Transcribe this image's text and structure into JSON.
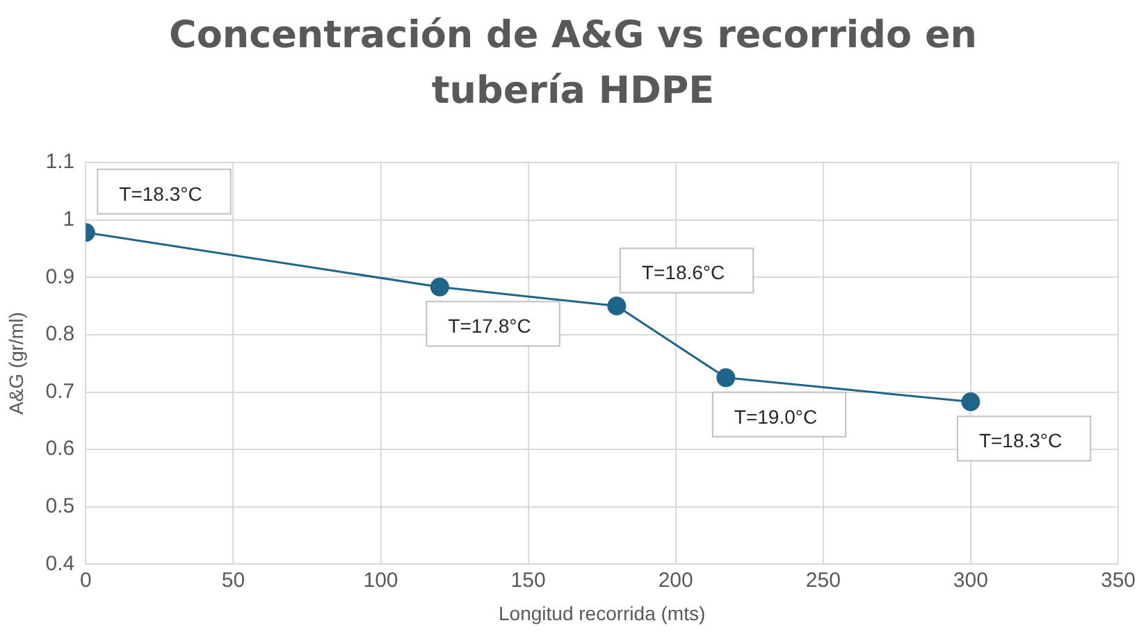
{
  "chart_data": {
    "type": "line",
    "title": "Concentración de A&G vs recorrido en tubería HDPE",
    "xlabel": "Longitud recorrida (mts)",
    "ylabel": "A&G (gr/ml)",
    "x": [
      0,
      120,
      180,
      217,
      300
    ],
    "series": [
      {
        "color": "#1f6489",
        "values": [
          0.978,
          0.883,
          0.85,
          0.725,
          0.683
        ]
      }
    ],
    "xlim": [
      0,
      350
    ],
    "xticks": [
      0,
      50,
      100,
      150,
      200,
      250,
      300,
      350
    ],
    "ylim": [
      0.4,
      1.1
    ],
    "yticks": [
      0.4,
      0.5,
      0.6,
      0.7,
      0.8,
      0.9,
      1,
      1.1
    ],
    "grid": true,
    "legend": false,
    "marker": "circle",
    "line_style": "solid",
    "annotations": [
      {
        "text": "T=18.3°C",
        "x": 0,
        "y": 0.978
      },
      {
        "text": "T=17.8°C",
        "x": 120,
        "y": 0.883
      },
      {
        "text": "T=18.6°C",
        "x": 180,
        "y": 0.85
      },
      {
        "text": "T=19.0°C",
        "x": 217,
        "y": 0.725
      },
      {
        "text": "T=18.3°C",
        "x": 300,
        "y": 0.683
      }
    ]
  }
}
